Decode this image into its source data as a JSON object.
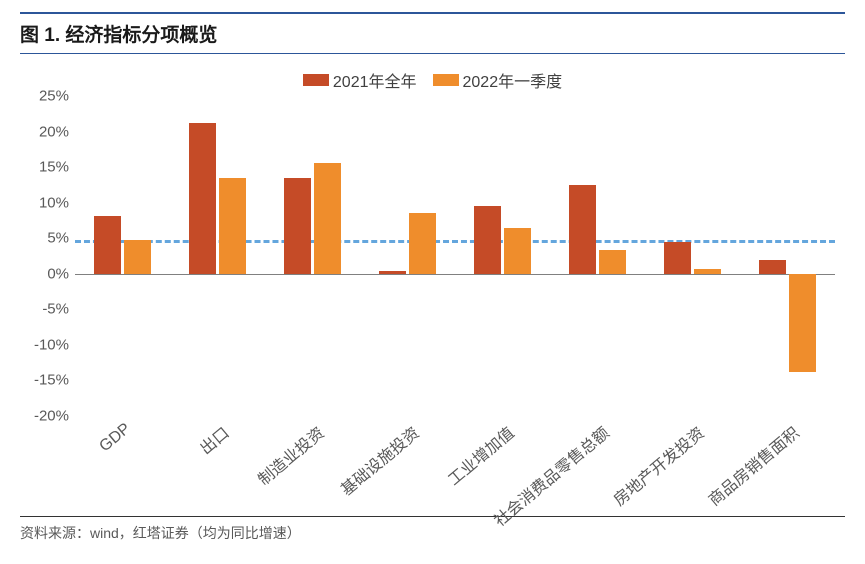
{
  "title": "图 1. 经济指标分项概览",
  "footer": "资料来源：wind，红塔证券（均为同比增速）",
  "chart": {
    "type": "bar",
    "background_color": "#ffffff",
    "title_border_color": "#2c5699",
    "legend": {
      "items": [
        {
          "label": "2021年全年",
          "color": "#c54b27"
        },
        {
          "label": "2022年一季度",
          "color": "#ef8d2c"
        }
      ],
      "fontsize": 16
    },
    "reference_line": {
      "value": 4.8,
      "color": "#64a6dd",
      "dash": true,
      "width": 3
    },
    "ylim": [
      -20,
      25
    ],
    "ytick_step": 5,
    "y_suffix": "%",
    "axis_fontsize": 15,
    "axis_color": "#595959",
    "zero_line_color": "#808080",
    "categories": [
      "GDP",
      "出口",
      "制造业投资",
      "基础设施投资",
      "工业增加值",
      "社会消费品零售总额",
      "房地产开发投资",
      "商品房销售面积"
    ],
    "x_label_rotation_deg": -40,
    "series": [
      {
        "name": "2021年全年",
        "color": "#c54b27",
        "values": [
          8.1,
          21.2,
          13.5,
          0.4,
          9.6,
          12.5,
          4.4,
          1.9
        ]
      },
      {
        "name": "2022年一季度",
        "color": "#ef8d2c",
        "values": [
          4.8,
          13.4,
          15.6,
          8.5,
          6.5,
          3.3,
          0.7,
          -13.8
        ]
      }
    ],
    "bar_width_ratio": 0.28,
    "group_gap_ratio": 0.04
  }
}
